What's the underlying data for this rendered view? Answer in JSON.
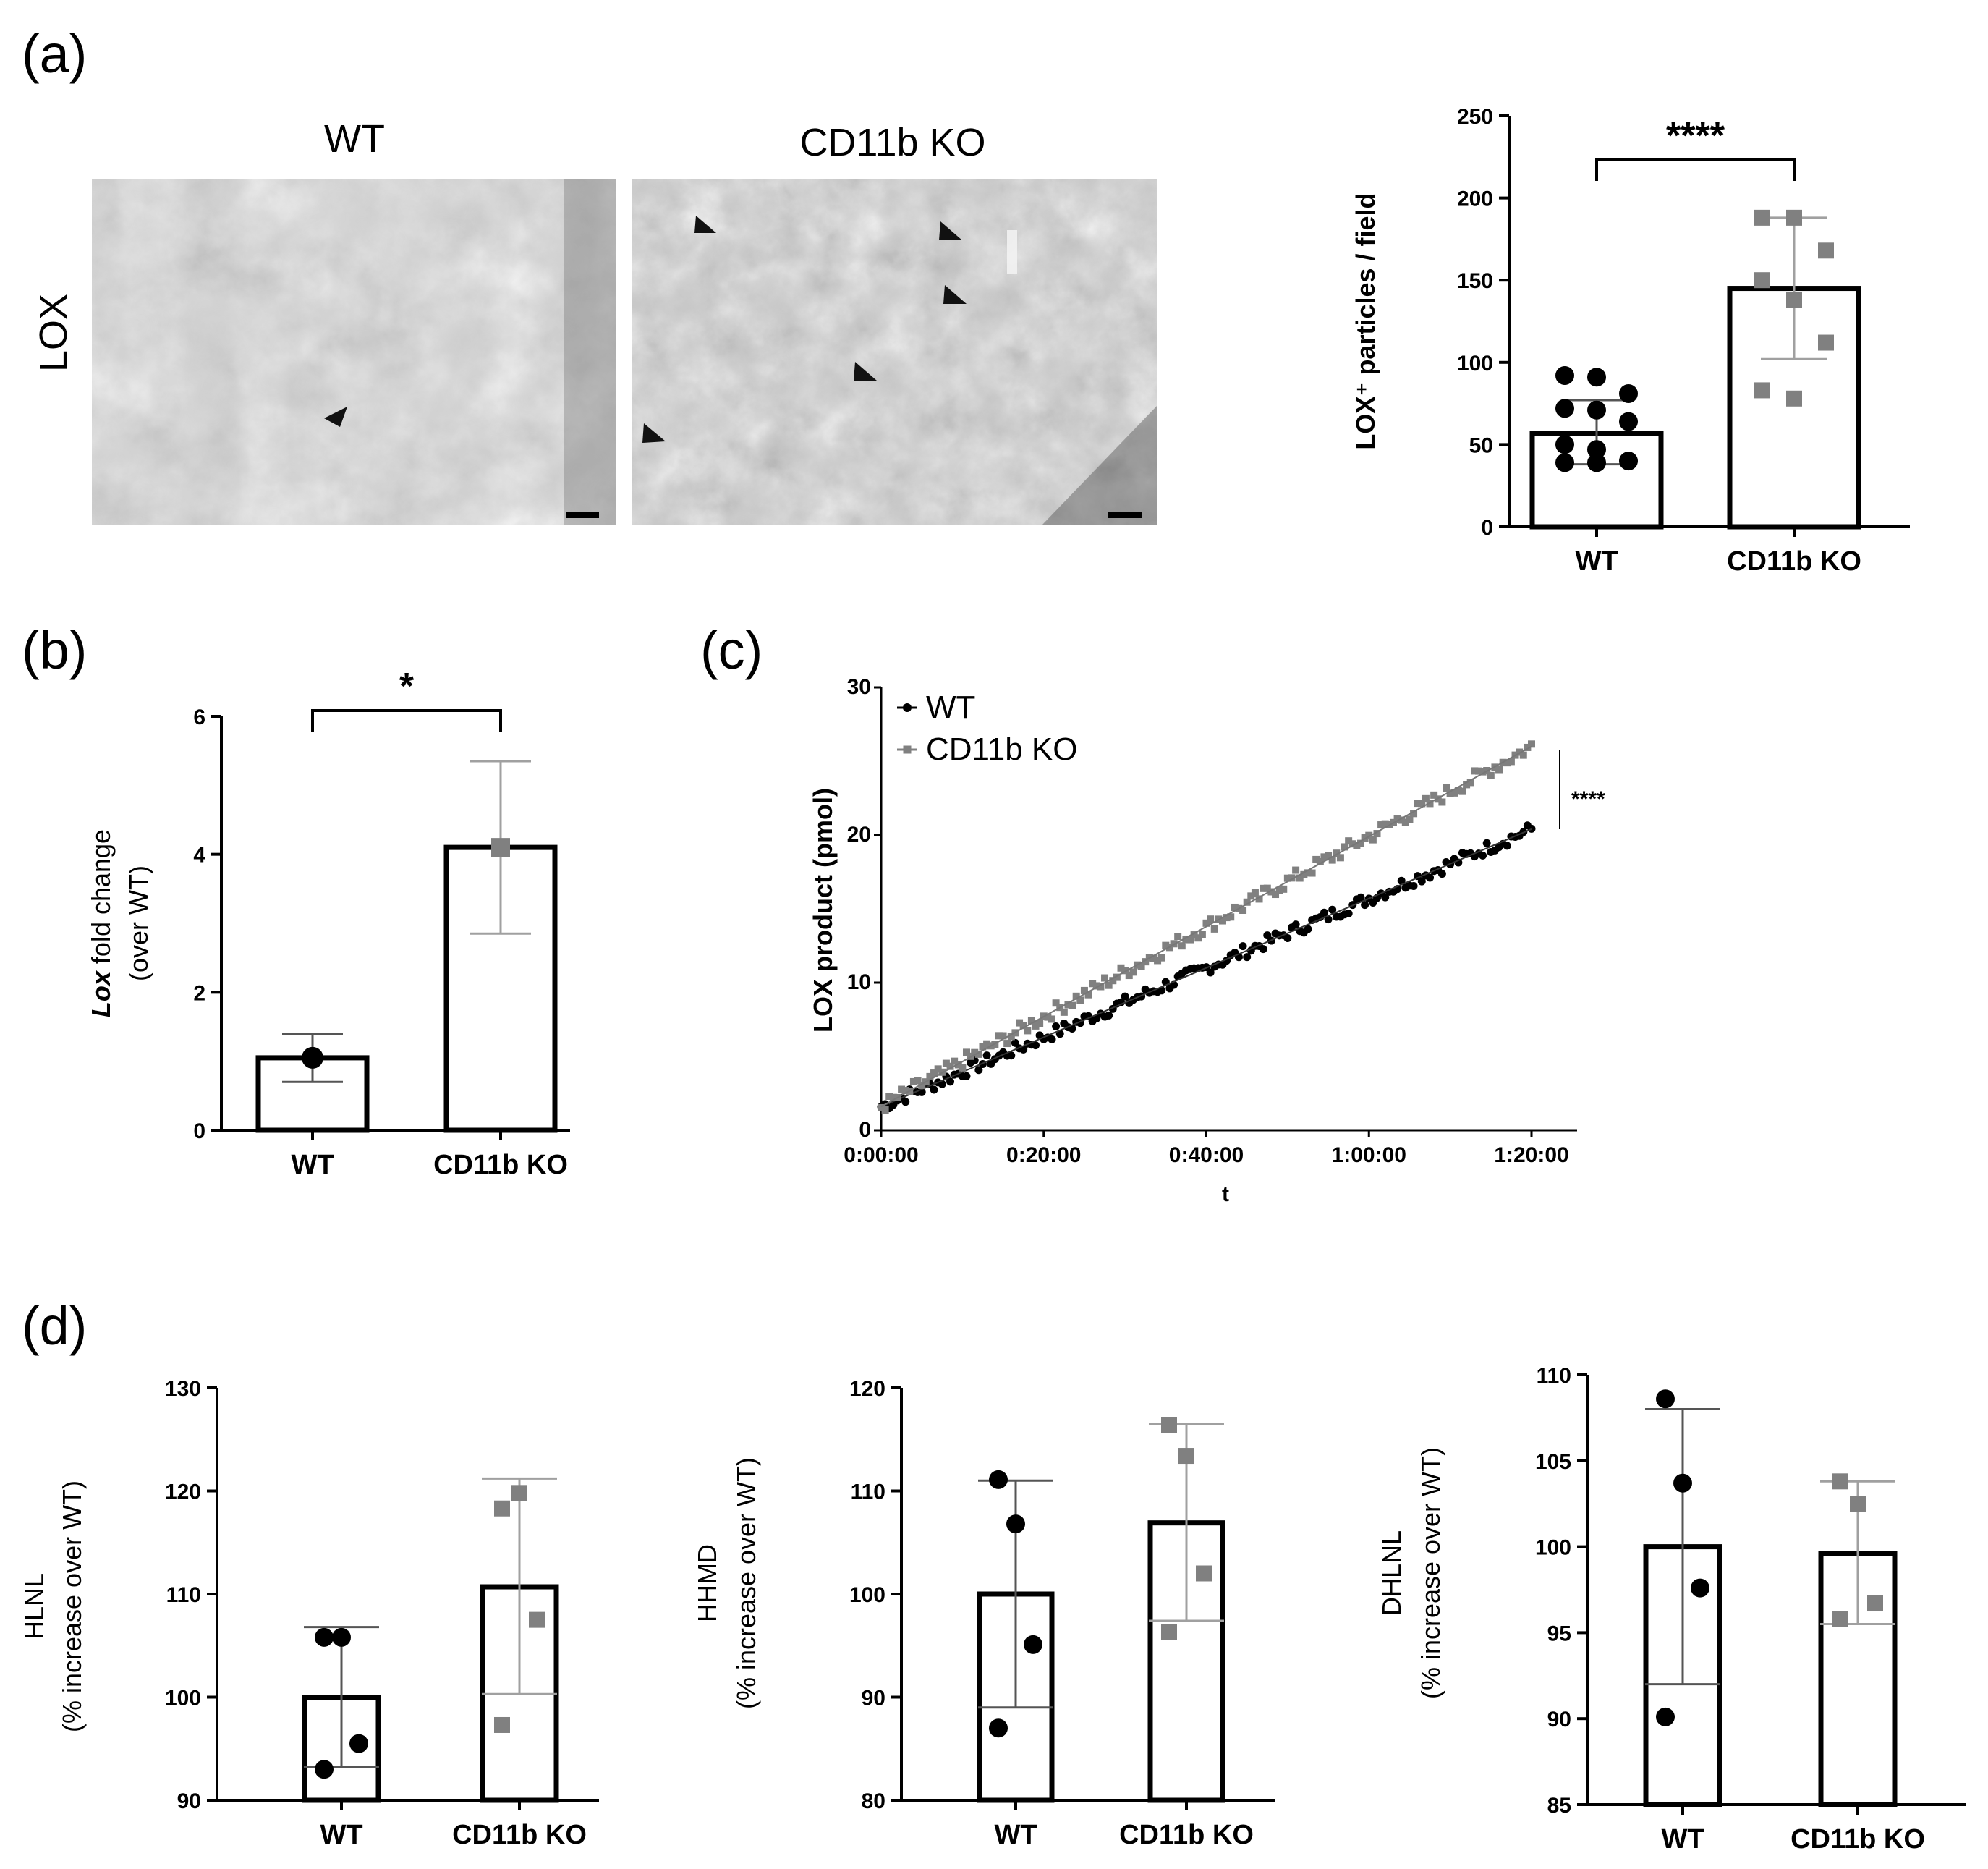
{
  "panels": {
    "a": "(a)",
    "b": "(b)",
    "c": "(c)",
    "d": "(d)"
  },
  "micrographs": {
    "row_label": "LOX",
    "images": [
      {
        "title": "WT"
      },
      {
        "title": "CD11b KO"
      }
    ]
  },
  "colors": {
    "wt": "#000000",
    "ko": "#808080",
    "ko_err": "#a0a0a0",
    "bar_fill": "#ffffff",
    "bar_edge": "#000000"
  },
  "chart_data": [
    {
      "id": "a-bar",
      "type": "bar",
      "title": "",
      "ylabel": "LOX⁺ particles / field",
      "categories": [
        "WT",
        "CD11b KO"
      ],
      "values": [
        57,
        145
      ],
      "err_low": [
        38,
        102
      ],
      "err_high": [
        77,
        188
      ],
      "points": [
        [
          92,
          91,
          81,
          72,
          71,
          64,
          50,
          47,
          40,
          39,
          39
        ],
        [
          188,
          188,
          168,
          150,
          138,
          112,
          83,
          78
        ]
      ],
      "yticks": [
        0,
        50,
        100,
        150,
        200,
        250
      ],
      "ylim": [
        0,
        250
      ],
      "significance": "****"
    },
    {
      "id": "b-bar",
      "type": "bar",
      "ylabel_italic": "Lox",
      "ylabel_rest": " fold change",
      "ylabel_line2": "(over WT)",
      "categories": [
        "WT",
        "CD11b KO"
      ],
      "values": [
        1.05,
        4.1
      ],
      "err_low": [
        0.7,
        2.85
      ],
      "err_high": [
        1.4,
        5.35
      ],
      "points": [
        [
          1.05
        ],
        [
          4.1
        ]
      ],
      "yticks": [
        0,
        2,
        4,
        6
      ],
      "ylim": [
        0,
        6
      ],
      "significance": "*"
    },
    {
      "id": "c-scatter",
      "type": "scatter",
      "xlabel": "t",
      "ylabel": "LOX product (pmol)",
      "x_unit": "minutes",
      "xticks": [
        "0:00:00",
        "0:20:00",
        "0:40:00",
        "1:00:00",
        "1:20:00"
      ],
      "xtick_values": [
        0,
        20,
        40,
        60,
        80
      ],
      "xlim": [
        0,
        80
      ],
      "yticks": [
        0,
        10,
        20,
        30
      ],
      "ylim": [
        0,
        30
      ],
      "significance": "****",
      "series": [
        {
          "name": "WT",
          "fit_start": 1.6,
          "fit_end": 20.4
        },
        {
          "name": "CD11b KO",
          "fit_start": 1.6,
          "fit_end": 26.0
        }
      ]
    },
    {
      "id": "d-hlnl",
      "type": "bar",
      "ylabel_line1": "HLNL",
      "ylabel_line2": "(% increase over WT)",
      "categories": [
        "WT",
        "CD11b KO"
      ],
      "values": [
        100,
        110.7
      ],
      "err_low": [
        93.2,
        100.3
      ],
      "err_high": [
        106.8,
        121.2
      ],
      "points": [
        [
          105.8,
          105.8,
          95.5,
          93.0
        ],
        [
          118.3,
          119.8,
          107.5,
          97.3
        ]
      ],
      "yticks": [
        90,
        100,
        110,
        120,
        130
      ],
      "ylim": [
        90,
        130
      ]
    },
    {
      "id": "d-hhmd",
      "type": "bar",
      "ylabel_line1": "HHMD",
      "ylabel_line2": "(% increase over WT)",
      "categories": [
        "WT",
        "CD11b KO"
      ],
      "values": [
        100,
        106.9
      ],
      "err_low": [
        89.0,
        97.4
      ],
      "err_high": [
        111.0,
        116.5
      ],
      "points": [
        [
          111.1,
          106.8,
          95.1,
          87.0
        ],
        [
          116.4,
          113.4,
          102.0,
          96.3
        ]
      ],
      "yticks": [
        80,
        90,
        100,
        110,
        120
      ],
      "ylim": [
        80,
        120
      ]
    },
    {
      "id": "d-dhlnl",
      "type": "bar",
      "ylabel_line1": "DHLNL",
      "ylabel_line2": "(% increase over WT)",
      "categories": [
        "WT",
        "CD11b KO"
      ],
      "values": [
        100,
        99.6
      ],
      "err_low": [
        92.0,
        95.5
      ],
      "err_high": [
        108.0,
        103.8
      ],
      "points": [
        [
          108.6,
          103.7,
          97.6,
          90.1
        ],
        [
          103.8,
          102.5,
          96.7,
          95.8
        ]
      ],
      "yticks": [
        85,
        90,
        95,
        100,
        105,
        110
      ],
      "ylim": [
        85,
        110
      ]
    }
  ]
}
